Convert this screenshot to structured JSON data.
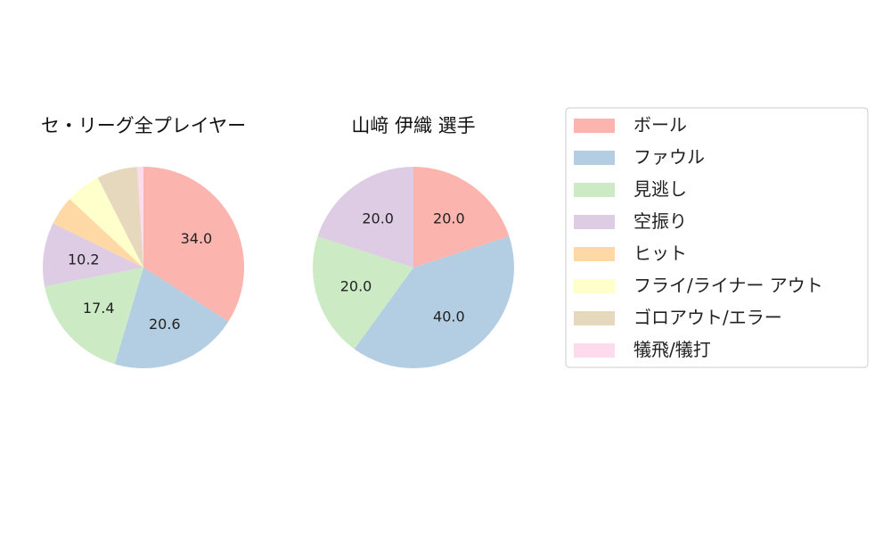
{
  "chart_data": [
    {
      "type": "pie",
      "title": "セ・リーグ全プレイヤー",
      "labels": [
        "ボール",
        "ファウル",
        "見逃し",
        "空振り",
        "ヒット",
        "フライ/ライナー アウト",
        "ゴロアウト/エラー",
        "犠飛/犠打"
      ],
      "values": [
        34.0,
        20.6,
        17.4,
        10.2,
        4.7,
        5.6,
        6.5,
        1.0
      ],
      "value_labels": [
        "34.0",
        "20.6",
        "17.4",
        "10.2",
        "",
        "",
        "",
        ""
      ],
      "start_angle": 90,
      "direction": "clockwise"
    },
    {
      "type": "pie",
      "title": "山﨑 伊織  選手",
      "labels": [
        "ボール",
        "ファウル",
        "見逃し",
        "空振り",
        "ヒット",
        "フライ/ライナー アウト",
        "ゴロアウト/エラー",
        "犠飛/犠打"
      ],
      "values": [
        20.0,
        40.0,
        20.0,
        20.0,
        0,
        0,
        0,
        0
      ],
      "value_labels": [
        "20.0",
        "40.0",
        "20.0",
        "20.0",
        "",
        "",
        "",
        ""
      ],
      "start_angle": 90,
      "direction": "clockwise"
    }
  ],
  "legend": {
    "position": "right",
    "items": [
      {
        "label": "ボール",
        "color": "#fbb4ae"
      },
      {
        "label": "ファウル",
        "color": "#b3cde3"
      },
      {
        "label": "見逃し",
        "color": "#ccebc5"
      },
      {
        "label": "空振り",
        "color": "#decbe4"
      },
      {
        "label": "ヒット",
        "color": "#fed9a6"
      },
      {
        "label": "フライ/ライナー アウト",
        "color": "#ffffcc"
      },
      {
        "label": "ゴロアウト/エラー",
        "color": "#e5d8bd"
      },
      {
        "label": "犠飛/犠打",
        "color": "#fddaec"
      }
    ]
  }
}
